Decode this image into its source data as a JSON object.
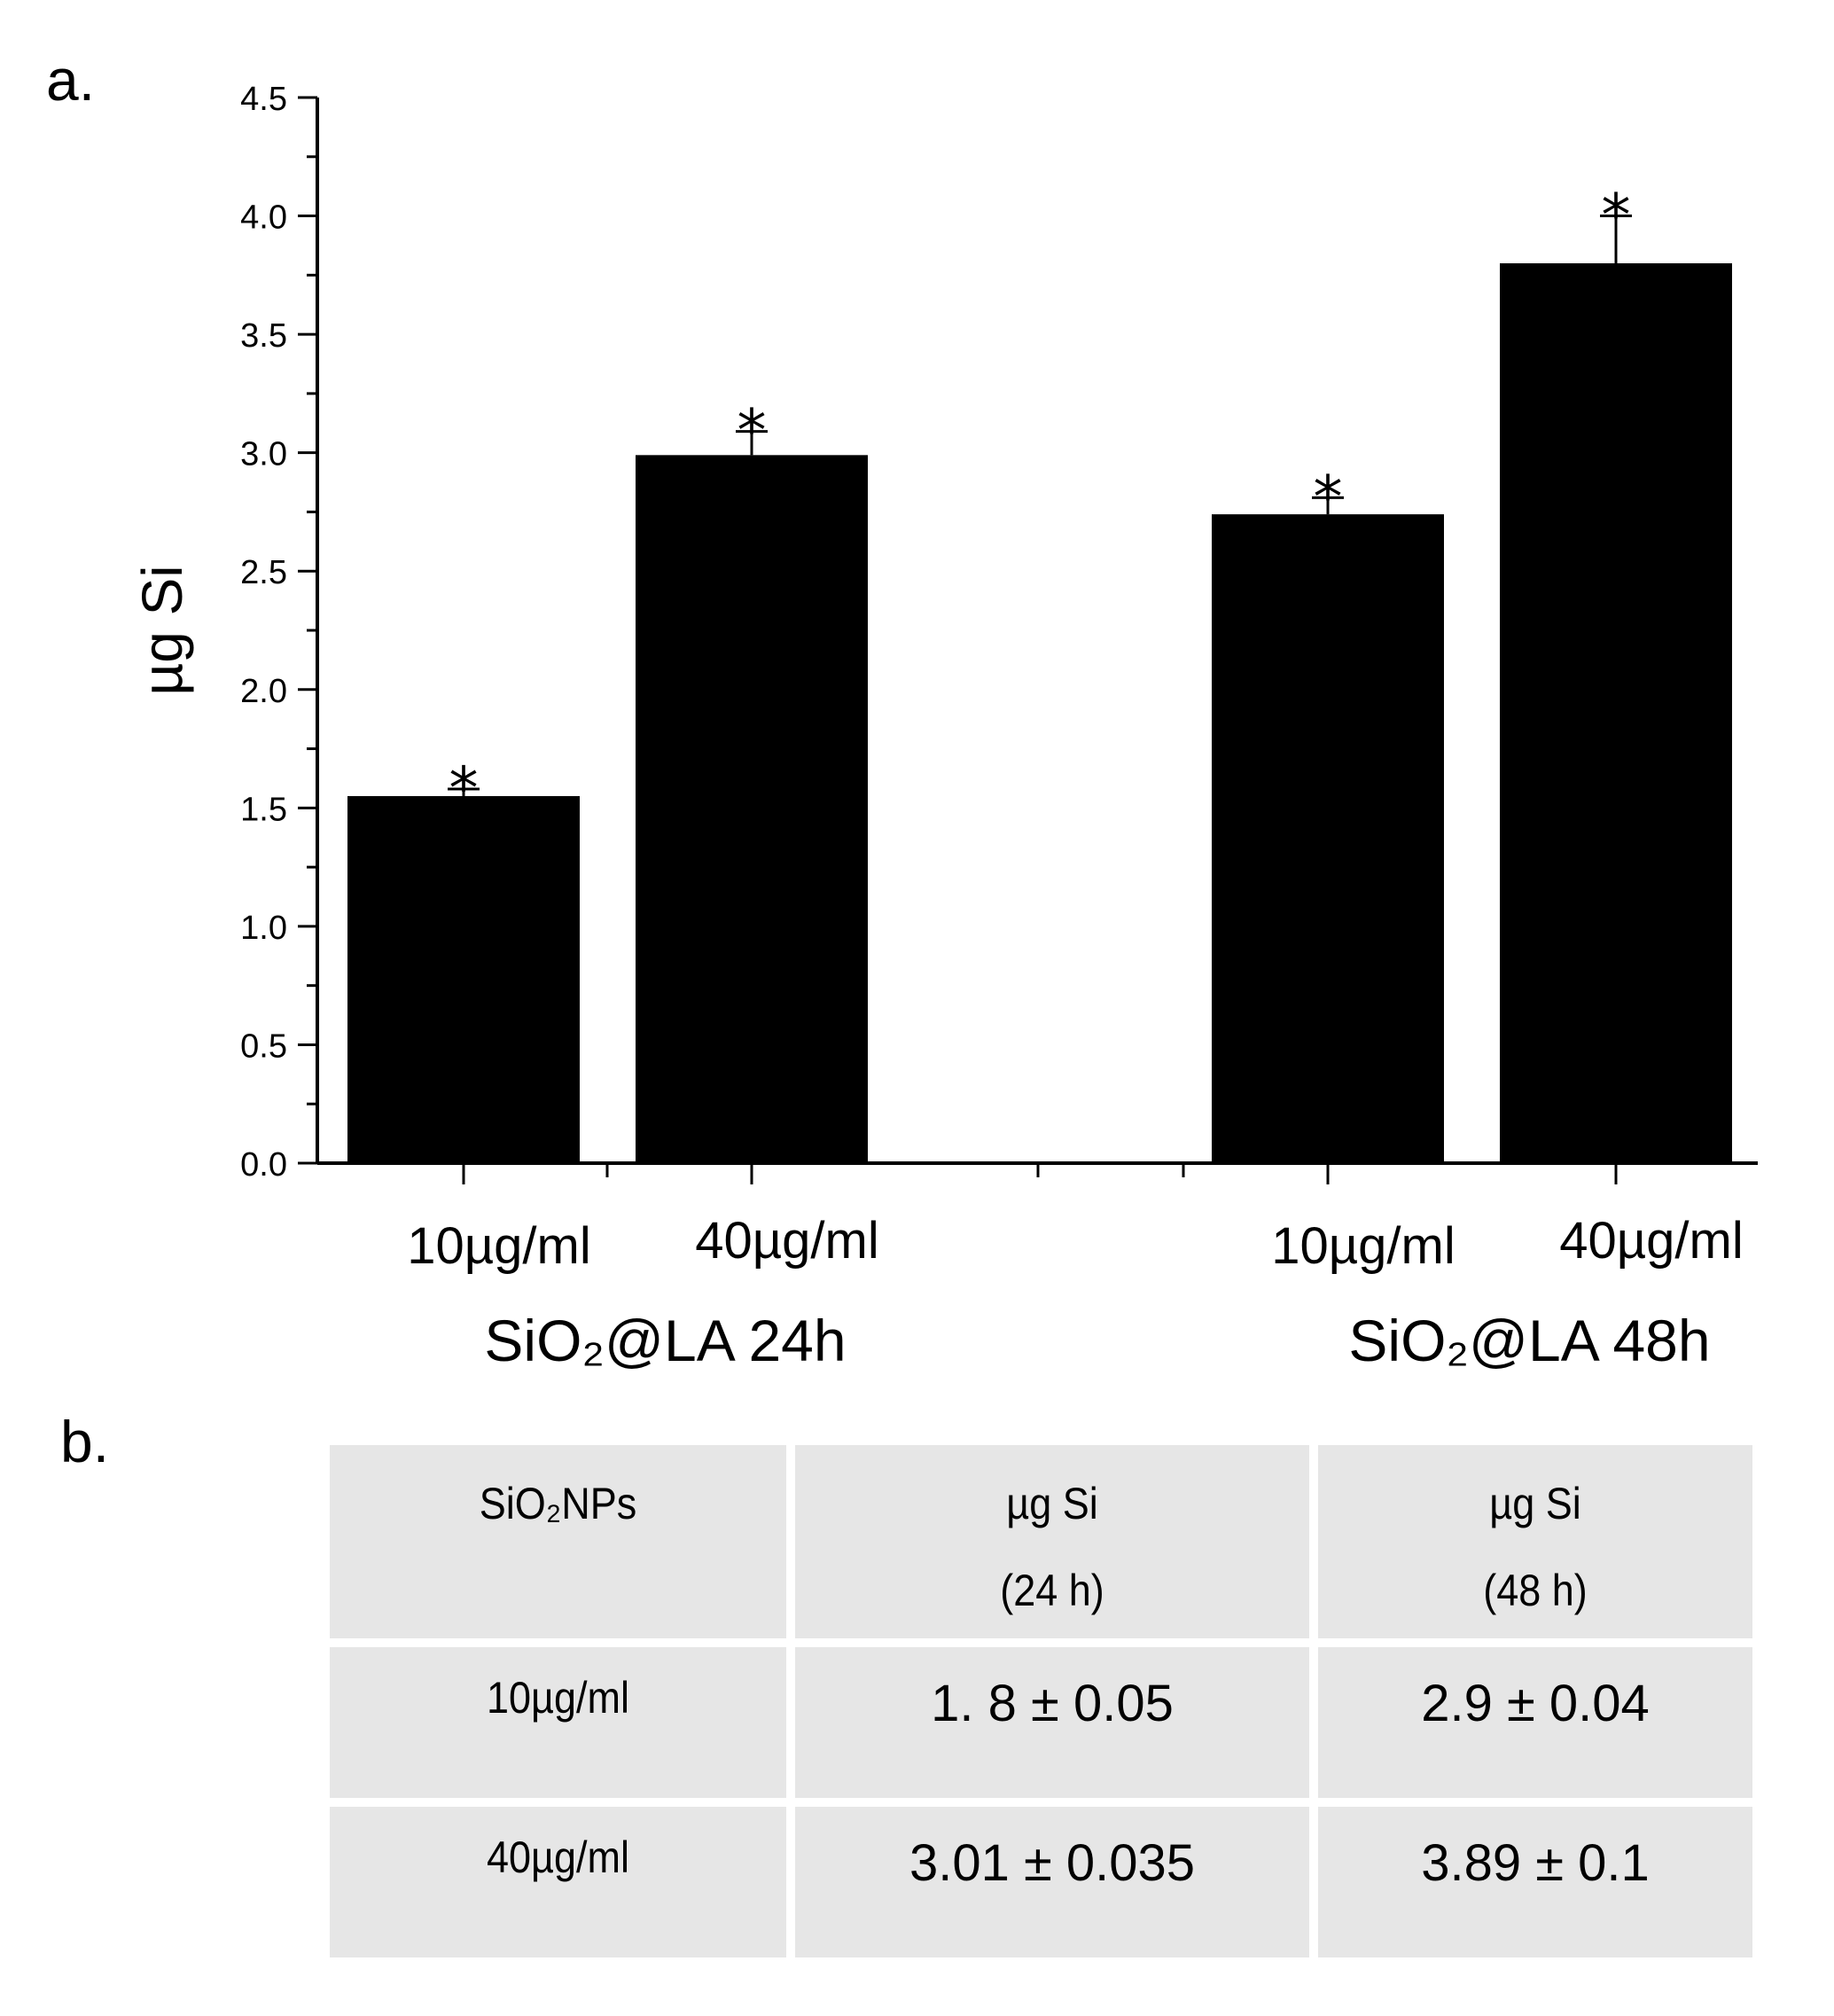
{
  "panels": {
    "a": "a.",
    "b": "b."
  },
  "chart_data": {
    "type": "bar",
    "ylabel": "µg Si",
    "ylim": [
      0,
      4.5
    ],
    "yticks": [
      "0.0",
      "0.5",
      "1.0",
      "1.5",
      "2.0",
      "2.5",
      "3.0",
      "3.5",
      "4.0",
      "4.5"
    ],
    "groups": [
      {
        "name": "SiO₂@LA 24h",
        "bars": [
          {
            "label": "10µg/ml",
            "value": 1.55,
            "error": 0.03,
            "annotation": "*"
          },
          {
            "label": "40µg/ml",
            "value": 2.99,
            "error": 0.1,
            "annotation": "*"
          }
        ]
      },
      {
        "name": "SiO₂@LA 48h",
        "bars": [
          {
            "label": "10µg/ml",
            "value": 2.74,
            "error": 0.07,
            "annotation": "*"
          },
          {
            "label": "40µg/ml",
            "value": 3.8,
            "error": 0.2,
            "annotation": "*"
          }
        ]
      }
    ],
    "bar_color": "#000000"
  },
  "table": {
    "header": {
      "col1": "SiO₂NPs",
      "col2_line1": "µg Si",
      "col2_line2": "(24 h)",
      "col3_line1": "µg Si",
      "col3_line2": "(48 h)"
    },
    "rows": [
      {
        "label": "10µg/ml",
        "v24": "1. 8 ± 0.05",
        "v48": "2.9 ± 0.04"
      },
      {
        "label": "40µg/ml",
        "v24": "3.01 ± 0.035",
        "v48": "3.89 ± 0.1"
      }
    ]
  }
}
